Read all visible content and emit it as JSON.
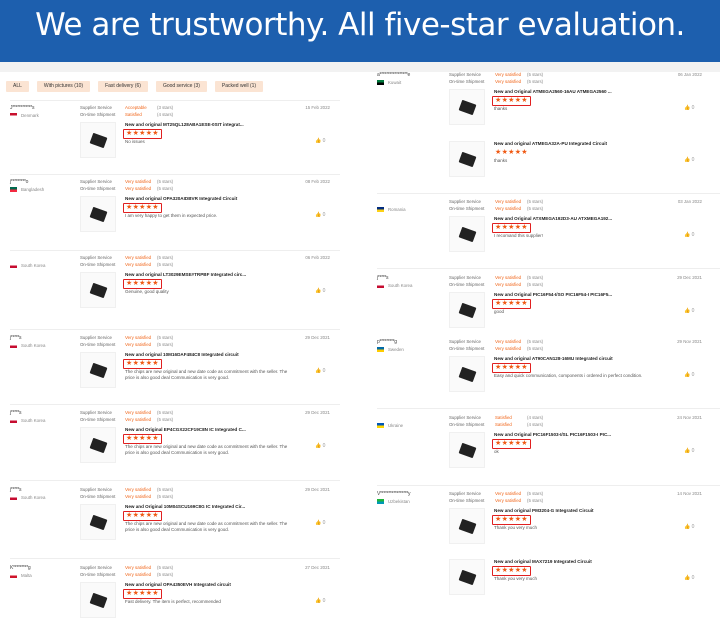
{
  "banner": {
    "title": "We are trustworthy. All five-star evaluation."
  },
  "filters": [
    "ALL",
    "With pictures (10)",
    "Fast delivery (6)",
    "Good service (3)",
    "Packed well (1)"
  ],
  "labels": {
    "supplier": "Supplier Service",
    "shipment": "On-time Shipment"
  },
  "colors": {
    "banner": "#1d5fae",
    "accent": "#f06418",
    "highlight": "#e02020"
  },
  "reviews_left": [
    {
      "user": "J************s",
      "country": "Denmark",
      "flag": [
        "#c8102e",
        "#fff"
      ],
      "supplier": "Acceptable",
      "supplier_stars": "(3 stars)",
      "shipment": "Satisfied",
      "shipment_stars": "(4 stars)",
      "date": "15 Feb 2022",
      "products": [
        {
          "title": "New and original MT25QL128ABA1ESE-0SIT integrat...",
          "rating": 5,
          "comment": "No issues",
          "likes": "0"
        }
      ]
    },
    {
      "user": "j*********o",
      "country": "Bangladesh",
      "flag": [
        "#006a4e",
        "#f42a41"
      ],
      "supplier": "Very satisfied",
      "supplier_stars": "(5 stars)",
      "shipment": "Very satisfied",
      "shipment_stars": "(5 stars)",
      "date": "08 Feb 2022",
      "products": [
        {
          "title": "New and original OPA320AIDBVR Integrated Circuit",
          "rating": 5,
          "comment": "I am very happy to get them in expected price.",
          "likes": "0"
        }
      ]
    },
    {
      "user": "",
      "country": "South Korea",
      "flag": [
        "#fff",
        "#c60c30"
      ],
      "supplier": "Very satisfied",
      "supplier_stars": "(5 stars)",
      "shipment": "Very satisfied",
      "shipment_stars": "(5 stars)",
      "date": "06 Feb 2022",
      "products": [
        {
          "title": "New and original LT3029EMSE#TRPBF Integrated circ...",
          "rating": 5,
          "comment": "Genuine, good quality",
          "likes": "0"
        }
      ]
    },
    {
      "user": "j*****s",
      "country": "South Korea",
      "flag": [
        "#fff",
        "#c60c30"
      ],
      "supplier": "Very satisfied",
      "supplier_stars": "(5 stars)",
      "shipment": "Very satisfied",
      "shipment_stars": "(5 stars)",
      "date": "29 Dec 2021",
      "products": [
        {
          "title": "New and original 10M16DAF484C8 Integrated circuit",
          "rating": 5,
          "comment": "The chips are new original and new date code as commitment with the seller. The price is also good deal Communication is very good.",
          "likes": "0"
        }
      ]
    },
    {
      "user": "j*****s",
      "country": "South Korea",
      "flag": [
        "#fff",
        "#c60c30"
      ],
      "supplier": "Very satisfied",
      "supplier_stars": "(5 stars)",
      "shipment": "Very satisfied",
      "shipment_stars": "(5 stars)",
      "date": "29 Dec 2021",
      "products": [
        {
          "title": "New and Original EP4CGX22CF19C8N IC Integrated C...",
          "rating": 5,
          "comment": "The chips are new original and new date code as commitment with the seller. The price is also good deal Communication is very good.",
          "likes": "0"
        }
      ]
    },
    {
      "user": "j*****s",
      "country": "South Korea",
      "flag": [
        "#fff",
        "#c60c30"
      ],
      "supplier": "Very satisfied",
      "supplier_stars": "(5 stars)",
      "shipment": "Very satisfied",
      "shipment_stars": "(5 stars)",
      "date": "29 Dec 2021",
      "products": [
        {
          "title": "New and Original 10M04SCU169C8G IC Integrated Cir...",
          "rating": 5,
          "comment": "The chips are new original and new date code as commitment with the seller. The price is also good deal Communication is very good.",
          "likes": "0"
        }
      ]
    },
    {
      "user": "K*********g",
      "country": "Malta",
      "flag": [
        "#fff",
        "#cf142b"
      ],
      "supplier": "Very satisfied",
      "supplier_stars": "(5 stars)",
      "shipment": "Very satisfied",
      "shipment_stars": "(5 stars)",
      "date": "27 Dec 2021",
      "products": [
        {
          "title": "New and original OPA4350EVH Integrated circuit",
          "rating": 5,
          "comment": "Fast delivery. The item is perfect, recommended",
          "likes": "0"
        }
      ]
    }
  ],
  "reviews_right": [
    {
      "user": "a*****************e",
      "country": "Kuwait",
      "flag": [
        "#007a3d",
        "#000"
      ],
      "supplier": "Very satisfied",
      "supplier_stars": "(5 stars)",
      "shipment": "Very satisfied",
      "shipment_stars": "(5 stars)",
      "date": "06 Jan 2022",
      "products": [
        {
          "title": "New and Original ATMEGA2560-16AU ATMEGA2560 ...",
          "rating": 5,
          "comment": "thanks",
          "likes": "0"
        },
        {
          "title": "New and original ATMEGA32A-PU Integrated Circuit",
          "rating": 5,
          "comment": "thanks",
          "likes": "0"
        }
      ]
    },
    {
      "user": "",
      "country": "Romania",
      "flag": [
        "#002b7f",
        "#fcd116"
      ],
      "supplier": "Very satisfied",
      "supplier_stars": "(5 stars)",
      "shipment": "Very satisfied",
      "shipment_stars": "(5 stars)",
      "date": "03 Jan 2022",
      "products": [
        {
          "title": "New and Original ATXMEGA192D3-AU ATXMEGA192...",
          "rating": 5,
          "comment": "I recomand this supplier!",
          "likes": "0"
        }
      ]
    },
    {
      "user": "j*****s",
      "country": "South Korea",
      "flag": [
        "#fff",
        "#c60c30"
      ],
      "supplier": "Very satisfied",
      "supplier_stars": "(5 stars)",
      "shipment": "Very satisfied",
      "shipment_stars": "(5 stars)",
      "date": "29 Dec 2021",
      "products": [
        {
          "title": "New and Original PIC16F54-I/SO PIC16F54-I PIC16F5...",
          "rating": 5,
          "comment": "good",
          "likes": "0"
        }
      ]
    },
    {
      "user": "p*********g",
      "country": "Sweden",
      "flag": [
        "#006aa7",
        "#fecc00"
      ],
      "supplier": "Very satisfied",
      "supplier_stars": "(5 stars)",
      "shipment": "Very satisfied",
      "shipment_stars": "(5 stars)",
      "date": "29 Nov 2021",
      "products": [
        {
          "title": "New and original AT90CAN128-16MU Integrated circuit",
          "rating": 5,
          "comment": "Easy and quick communication, components i ordered in perfect condition.",
          "likes": "0"
        }
      ]
    },
    {
      "user": "",
      "country": "Ukraine",
      "flag": [
        "#0057b7",
        "#ffd700"
      ],
      "supplier": "Satisfied",
      "supplier_stars": "(4 stars)",
      "shipment": "Satisfied",
      "shipment_stars": "(4 stars)",
      "date": "24 Nov 2021",
      "products": [
        {
          "title": "New and Original PIC16F1503-I/SL PIC16F1503-I PIC...",
          "rating": 5,
          "comment": "ok",
          "likes": "0"
        }
      ]
    },
    {
      "user": "V*****************y",
      "country": "Uzbekistan",
      "flag": [
        "#1eb53a",
        "#0099b5"
      ],
      "supplier": "Very satisfied",
      "supplier_stars": "(5 stars)",
      "shipment": "Very satisfied",
      "shipment_stars": "(5 stars)",
      "date": "14 Nov 2021",
      "products": [
        {
          "title": "New and original PM3204-G Integrated Circuit",
          "rating": 5,
          "comment": "Thank you very much",
          "likes": "0"
        },
        {
          "title": "New and original MAX7219 Integrated Circuit",
          "rating": 5,
          "comment": "Thank you very much",
          "likes": "0"
        }
      ]
    }
  ]
}
